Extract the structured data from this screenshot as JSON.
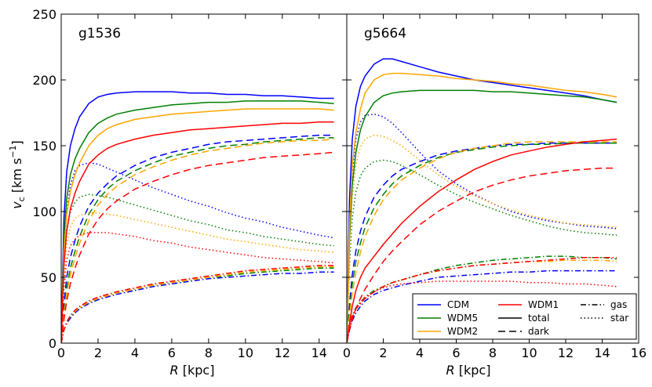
{
  "chart_data": {
    "type": "line",
    "ylabel": "v_c [km s^-1]",
    "ylabel_parts": {
      "var": "v",
      "sub": "c",
      "unit_open": " [km s",
      "sup": "−1",
      "unit_close": "]"
    },
    "xlabel_parts": {
      "var": "R",
      "unit": " [kpc]"
    },
    "ylim": [
      0,
      250
    ],
    "yticks": [
      "0",
      "50",
      "100",
      "150",
      "200",
      "250"
    ],
    "colors": {
      "CDM": "#0000ff",
      "WDM5": "#008000",
      "WDM2": "#ffa500",
      "WDM1": "#ff0000"
    },
    "legend": {
      "position": "lower-right",
      "models": [
        {
          "name": "CDM",
          "color": "#0000ff"
        },
        {
          "name": "WDM5",
          "color": "#008000"
        },
        {
          "name": "WDM2",
          "color": "#ffa500"
        },
        {
          "name": "WDM1",
          "color": "#ff0000"
        }
      ],
      "components": [
        {
          "name": "total",
          "style": "solid"
        },
        {
          "name": "dark",
          "style": "dashed"
        },
        {
          "name": "gas",
          "style": "dashdot"
        },
        {
          "name": "star",
          "style": "dotted"
        }
      ]
    },
    "panels": [
      {
        "title": "g1536",
        "xlim": [
          0,
          15.5
        ],
        "xticks": [
          "0",
          "2",
          "4",
          "6",
          "8",
          "10",
          "12",
          "14"
        ],
        "x": [
          0,
          0.15,
          0.3,
          0.5,
          0.75,
          1,
          1.5,
          2,
          2.5,
          3,
          4,
          5,
          6,
          7,
          8,
          9,
          10,
          11,
          12,
          13,
          14,
          14.8
        ],
        "series": {
          "CDM": {
            "total": [
              0,
              95,
              130,
              150,
              163,
              172,
              182,
              187,
              189,
              190,
              191,
              191,
              191,
              190,
              190,
              189,
              189,
              188,
              188,
              187,
              186,
              186
            ],
            "dark": [
              0,
              30,
              50,
              65,
              78,
              89,
              104,
              114,
              121,
              127,
              135,
              141,
              145,
              148,
              151,
              153,
              154,
              155,
              156,
              157,
              158,
              158
            ],
            "gas": [
              0,
              10,
              15,
              19,
              23,
              26,
              30,
              33,
              35,
              37,
              40,
              43,
              45,
              47,
              49,
              50,
              51,
              52,
              53,
              53,
              54,
              54
            ],
            "star": [
              0,
              62,
              100,
              120,
              131,
              135,
              137,
              136,
              133,
              130,
              124,
              118,
              113,
              108,
              104,
              99,
              95,
              92,
              88,
              85,
              82,
              80
            ]
          },
          "WDM5": {
            "total": [
              0,
              80,
              110,
              128,
              140,
              148,
              160,
              167,
              171,
              174,
              177,
              179,
              181,
              182,
              183,
              183,
              184,
              184,
              184,
              184,
              183,
              182
            ],
            "dark": [
              0,
              24,
              42,
              57,
              70,
              81,
              98,
              109,
              117,
              123,
              131,
              137,
              142,
              145,
              148,
              150,
              151,
              153,
              154,
              155,
              156,
              156
            ],
            "gas": [
              0,
              10,
              16,
              20,
              24,
              27,
              31,
              34,
              36,
              38,
              41,
              44,
              46,
              48,
              50,
              51,
              53,
              54,
              55,
              56,
              57,
              57
            ],
            "star": [
              0,
              55,
              85,
              100,
              107,
              111,
              113,
              112,
              111,
              109,
              105,
              101,
              97,
              93,
              90,
              86,
              84,
              81,
              79,
              77,
              75,
              74
            ]
          },
          "WDM2": {
            "total": [
              0,
              70,
              98,
              115,
              128,
              137,
              150,
              158,
              163,
              166,
              170,
              172,
              174,
              175,
              176,
              177,
              178,
              178,
              178,
              178,
              178,
              177
            ],
            "dark": [
              0,
              22,
              38,
              52,
              65,
              76,
              93,
              105,
              113,
              119,
              128,
              134,
              139,
              143,
              146,
              148,
              150,
              152,
              153,
              154,
              154,
              155
            ],
            "gas": [
              0,
              10,
              16,
              21,
              24,
              27,
              31,
              34,
              36,
              38,
              41,
              44,
              46,
              48,
              50,
              52,
              54,
              55,
              56,
              57,
              58,
              58
            ],
            "star": [
              0,
              50,
              75,
              88,
              95,
              97,
              99,
              99,
              98,
              97,
              94,
              91,
              88,
              85,
              82,
              79,
              77,
              75,
              73,
              71,
              70,
              69
            ]
          },
          "WDM1": {
            "total": [
              0,
              60,
              85,
              102,
              114,
              123,
              136,
              143,
              148,
              151,
              155,
              158,
              160,
              162,
              163,
              164,
              165,
              166,
              167,
              167,
              168,
              168
            ],
            "dark": [
              0,
              18,
              32,
              45,
              57,
              67,
              83,
              94,
              102,
              108,
              117,
              123,
              128,
              132,
              135,
              137,
              139,
              141,
              142,
              143,
              144,
              145
            ],
            "gas": [
              0,
              10,
              16,
              21,
              25,
              28,
              32,
              35,
              37,
              39,
              42,
              45,
              47,
              49,
              51,
              53,
              55,
              56,
              57,
              58,
              59,
              59
            ],
            "star": [
              0,
              42,
              63,
              74,
              79,
              82,
              84,
              84,
              84,
              83,
              81,
              78,
              76,
              73,
              71,
              69,
              67,
              65,
              64,
              63,
              62,
              61
            ]
          }
        }
      },
      {
        "title": "g5664",
        "xlim": [
          0,
          16
        ],
        "xticks": [
          "0",
          "2",
          "4",
          "6",
          "8",
          "10",
          "12",
          "14",
          "16"
        ],
        "x": [
          0,
          0.15,
          0.3,
          0.5,
          0.75,
          1,
          1.5,
          2,
          2.5,
          3,
          4,
          5,
          6,
          7,
          8,
          9,
          10,
          11,
          12,
          13,
          14,
          14.8
        ],
        "series": {
          "CDM": {
            "total": [
              0,
              110,
              155,
              180,
              195,
              203,
              212,
              216,
              216,
              214,
              210,
              206,
              203,
              200,
              198,
              196,
              194,
              192,
              190,
              188,
              185,
              183
            ],
            "dark": [
              0,
              30,
              52,
              70,
              85,
              96,
              111,
              120,
              127,
              132,
              138,
              143,
              146,
              148,
              150,
              151,
              151,
              152,
              152,
              152,
              152,
              152
            ],
            "gas": [
              0,
              10,
              17,
              23,
              28,
              32,
              37,
              40,
              42,
              44,
              47,
              50,
              51,
              52,
              53,
              54,
              54,
              55,
              55,
              55,
              55,
              55
            ],
            "star": [
              0,
              85,
              130,
              155,
              168,
              173,
              174,
              172,
              167,
              160,
              145,
              131,
              121,
              113,
              106,
              100,
              96,
              93,
              91,
              89,
              88,
              87
            ]
          },
          "WDM5": {
            "total": [
              0,
              80,
              120,
              145,
              162,
              172,
              183,
              188,
              190,
              191,
              192,
              192,
              192,
              192,
              191,
              191,
              190,
              189,
              188,
              187,
              185,
              183
            ],
            "dark": [
              0,
              25,
              45,
              62,
              76,
              88,
              103,
              113,
              121,
              127,
              135,
              141,
              145,
              147,
              149,
              150,
              151,
              151,
              152,
              152,
              152,
              152
            ],
            "gas": [
              0,
              14,
              21,
              27,
              31,
              35,
              40,
              43,
              46,
              48,
              52,
              56,
              59,
              61,
              63,
              64,
              65,
              66,
              66,
              65,
              65,
              64
            ],
            "star": [
              0,
              60,
              95,
              115,
              127,
              133,
              138,
              139,
              138,
              135,
              128,
              120,
              113,
              107,
              102,
              97,
              93,
              89,
              86,
              84,
              83,
              82
            ]
          },
          "WDM2": {
            "total": [
              0,
              90,
              135,
              160,
              178,
              190,
              200,
              204,
              205,
              205,
              204,
              203,
              201,
              200,
              199,
              197,
              196,
              194,
              192,
              191,
              189,
              187
            ],
            "dark": [
              0,
              20,
              38,
              54,
              69,
              81,
              97,
              109,
              117,
              124,
              133,
              140,
              145,
              148,
              150,
              152,
              153,
              153,
              153,
              153,
              153,
              153
            ],
            "gas": [
              0,
              13,
              20,
              26,
              30,
              34,
              39,
              43,
              46,
              48,
              52,
              55,
              57,
              59,
              60,
              61,
              62,
              62,
              63,
              63,
              63,
              62
            ],
            "star": [
              0,
              70,
              110,
              135,
              149,
              155,
              158,
              157,
              154,
              150,
              139,
              128,
              119,
              112,
              106,
              101,
              97,
              94,
              91,
              90,
              89,
              88
            ]
          },
          "WDM1": {
            "total": [
              0,
              15,
              28,
              40,
              50,
              57,
              66,
              75,
              83,
              91,
              104,
              115,
              124,
              132,
              138,
              143,
              146,
              149,
              151,
              153,
              154,
              155
            ],
            "dark": [
              0,
              10,
              18,
              26,
              34,
              41,
              52,
              62,
              70,
              77,
              90,
              100,
              108,
              115,
              120,
              124,
              127,
              129,
              131,
              132,
              133,
              133
            ],
            "gas": [
              0,
              12,
              20,
              26,
              30,
              34,
              39,
              43,
              46,
              48,
              52,
              55,
              57,
              59,
              60,
              61,
              62,
              63,
              64,
              65,
              65,
              65
            ],
            "star": [
              0,
              12,
              20,
              26,
              31,
              35,
              39,
              42,
              44,
              45,
              46,
              47,
              47,
              47,
              47,
              47,
              46,
              46,
              45,
              45,
              44,
              43
            ]
          }
        }
      }
    ]
  }
}
